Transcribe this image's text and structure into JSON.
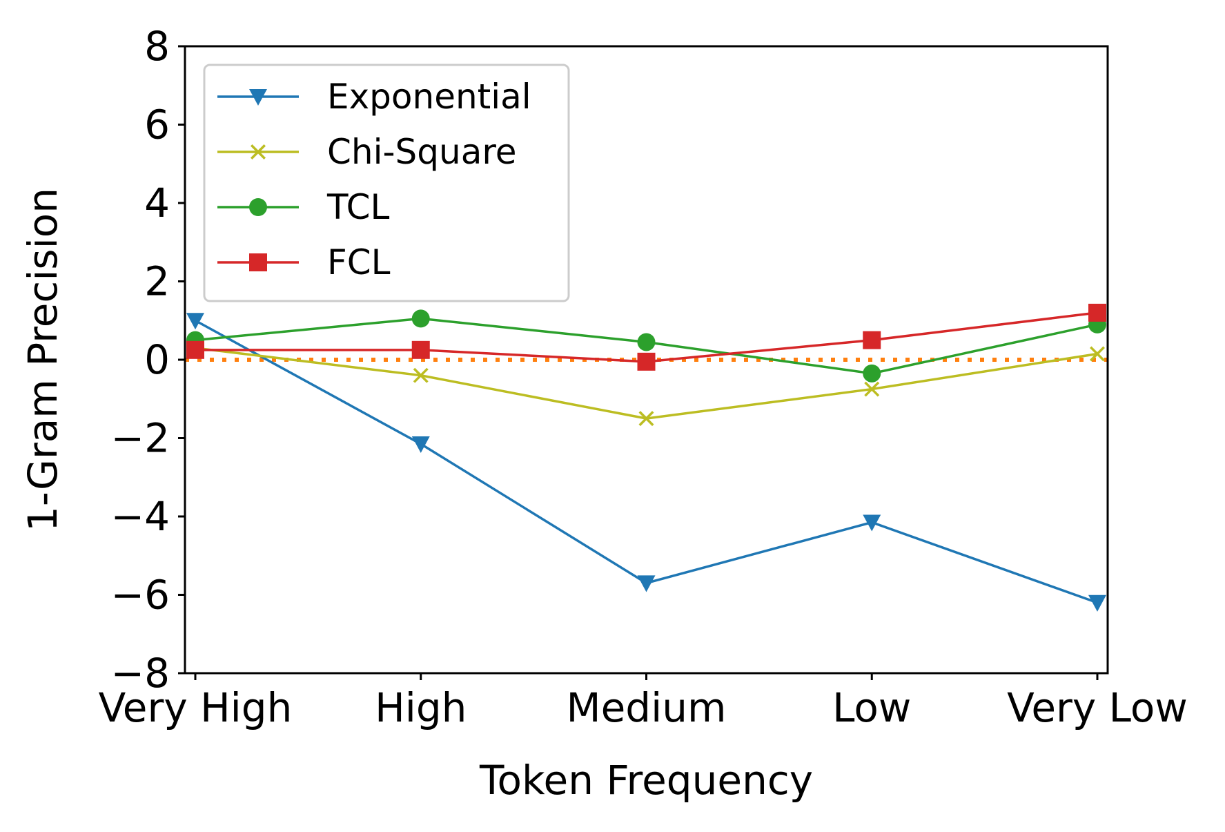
{
  "chart_data": {
    "type": "line",
    "categories": [
      "Very High",
      "High",
      "Medium",
      "Low",
      "Very Low"
    ],
    "xlabel": "Token Frequency",
    "ylabel": "1-Gram Precision",
    "ylim": [
      -8,
      8
    ],
    "yticks": [
      8,
      6,
      4,
      2,
      0,
      -2,
      -4,
      -6,
      -8
    ],
    "ytick_labels": [
      "8",
      "6",
      "4",
      "2",
      "0",
      "−2",
      "−4",
      "−6",
      "−8"
    ],
    "grid": false,
    "legend_position": "top-left",
    "series": [
      {
        "name": "Exponential",
        "values": [
          1.0,
          -2.15,
          -5.7,
          -4.15,
          -6.2
        ],
        "color": "#1f77b4",
        "marker": "triangle-down"
      },
      {
        "name": "Chi-Square",
        "values": [
          0.3,
          -0.4,
          -1.5,
          -0.75,
          0.15
        ],
        "color": "#bcbd22",
        "marker": "x"
      },
      {
        "name": "TCL",
        "values": [
          0.5,
          1.05,
          0.45,
          -0.35,
          0.9
        ],
        "color": "#2ca02c",
        "marker": "circle"
      },
      {
        "name": "FCL",
        "values": [
          0.25,
          0.25,
          -0.05,
          0.5,
          1.2
        ],
        "color": "#d62728",
        "marker": "square"
      }
    ],
    "baseline": {
      "value": 0,
      "color": "#ff7f0e",
      "style": "dotted"
    }
  }
}
